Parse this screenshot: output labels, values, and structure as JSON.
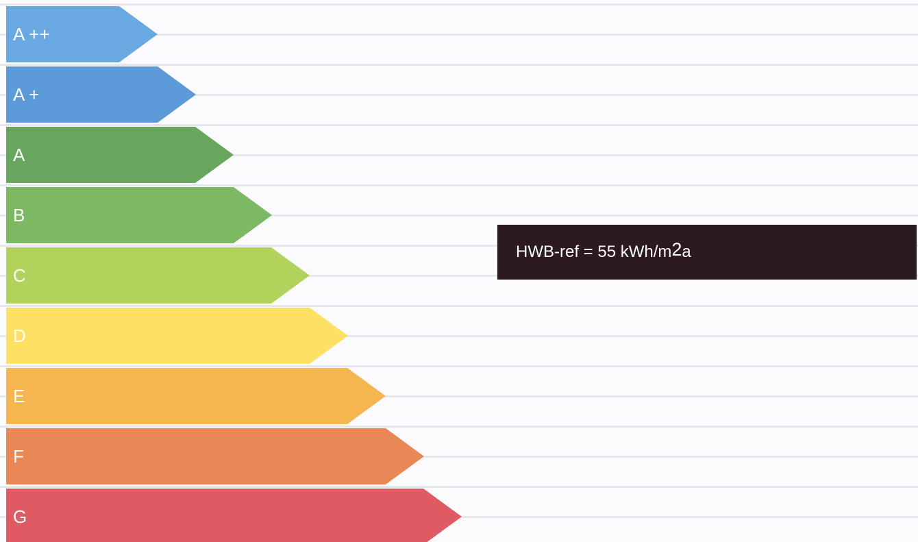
{
  "energy_label": {
    "classes": [
      {
        "label": "A ++",
        "color": "#6aa8e2"
      },
      {
        "label": "A +",
        "color": "#5c9ada"
      },
      {
        "label": "A",
        "color": "#67a65c"
      },
      {
        "label": "B",
        "color": "#7db863"
      },
      {
        "label": "C",
        "color": "#b1d35c"
      },
      {
        "label": "D",
        "color": "#fde064"
      },
      {
        "label": "E",
        "color": "#f5b64f"
      },
      {
        "label": "F",
        "color": "#ea8757"
      },
      {
        "label": "G",
        "color": "#e05a63"
      }
    ],
    "indicator": {
      "prefix": "HWB-ref = 55 kWh/m",
      "superscript": "2",
      "suffix": "a",
      "background": "#2c1a22"
    }
  }
}
